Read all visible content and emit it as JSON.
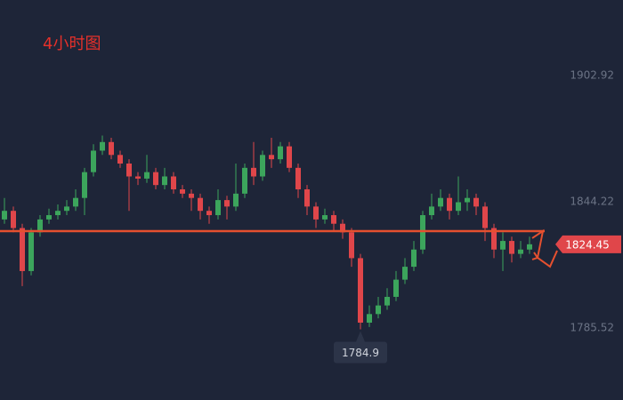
{
  "chart_data": {
    "type": "candlestick",
    "title": "4小时图",
    "up_color": "#3ca55c",
    "down_color": "#e0464a",
    "line_color": "#e5502f",
    "ylim": [
      1752.03,
      1938.06
    ],
    "yticks": [
      1785.52,
      1844.22,
      1902.92
    ],
    "hline": 1830.6,
    "candles": [
      [
        1836,
        1846,
        1834,
        1840
      ],
      [
        1840,
        1842,
        1830,
        1832
      ],
      [
        1832,
        1834,
        1805,
        1812
      ],
      [
        1812,
        1832,
        1810,
        1830
      ],
      [
        1830,
        1838,
        1828,
        1836
      ],
      [
        1836,
        1841,
        1834,
        1838
      ],
      [
        1838,
        1843,
        1836,
        1840
      ],
      [
        1840,
        1845,
        1838,
        1842
      ],
      [
        1842,
        1850,
        1840,
        1846
      ],
      [
        1846,
        1860,
        1838,
        1858
      ],
      [
        1858,
        1871,
        1856,
        1868
      ],
      [
        1868,
        1875,
        1866,
        1872
      ],
      [
        1872,
        1874,
        1864,
        1866
      ],
      [
        1866,
        1868,
        1860,
        1862
      ],
      [
        1862,
        1864,
        1840,
        1856
      ],
      [
        1856,
        1858,
        1852,
        1855
      ],
      [
        1855,
        1866,
        1853,
        1858
      ],
      [
        1858,
        1860,
        1850,
        1852
      ],
      [
        1852,
        1860,
        1850,
        1856
      ],
      [
        1856,
        1858,
        1848,
        1850
      ],
      [
        1850,
        1852,
        1846,
        1848
      ],
      [
        1848,
        1850,
        1840,
        1846
      ],
      [
        1846,
        1848,
        1836,
        1840
      ],
      [
        1840,
        1842,
        1834,
        1838
      ],
      [
        1838,
        1850,
        1836,
        1845
      ],
      [
        1845,
        1847,
        1836,
        1842
      ],
      [
        1842,
        1862,
        1840,
        1848
      ],
      [
        1848,
        1862,
        1846,
        1860
      ],
      [
        1860,
        1872,
        1852,
        1856
      ],
      [
        1856,
        1868,
        1854,
        1866
      ],
      [
        1866,
        1874,
        1860,
        1864
      ],
      [
        1864,
        1872,
        1862,
        1870
      ],
      [
        1870,
        1872,
        1858,
        1860
      ],
      [
        1860,
        1862,
        1846,
        1850
      ],
      [
        1850,
        1852,
        1838,
        1842
      ],
      [
        1842,
        1844,
        1832,
        1836
      ],
      [
        1836,
        1841,
        1834,
        1838
      ],
      [
        1838,
        1840,
        1831,
        1834
      ],
      [
        1834,
        1836,
        1827,
        1830
      ],
      [
        1830,
        1832,
        1814,
        1818
      ],
      [
        1818,
        1820,
        1784.9,
        1788
      ],
      [
        1788,
        1796,
        1786,
        1792
      ],
      [
        1792,
        1800,
        1790,
        1796
      ],
      [
        1796,
        1804,
        1794,
        1800
      ],
      [
        1800,
        1812,
        1798,
        1808
      ],
      [
        1808,
        1818,
        1806,
        1814
      ],
      [
        1814,
        1826,
        1812,
        1822
      ],
      [
        1822,
        1840,
        1820,
        1838
      ],
      [
        1838,
        1848,
        1836,
        1842
      ],
      [
        1842,
        1850,
        1840,
        1846
      ],
      [
        1846,
        1848,
        1836,
        1840
      ],
      [
        1840,
        1856,
        1838,
        1844
      ],
      [
        1844,
        1850,
        1840,
        1846
      ],
      [
        1846,
        1848,
        1838,
        1842
      ],
      [
        1842,
        1844,
        1826,
        1832
      ],
      [
        1832,
        1834,
        1818,
        1822
      ],
      [
        1822,
        1830,
        1812,
        1826
      ],
      [
        1826,
        1828,
        1816,
        1820
      ],
      [
        1820,
        1826,
        1818,
        1822
      ],
      [
        1822,
        1828,
        1820,
        1824.45
      ]
    ]
  }
}
